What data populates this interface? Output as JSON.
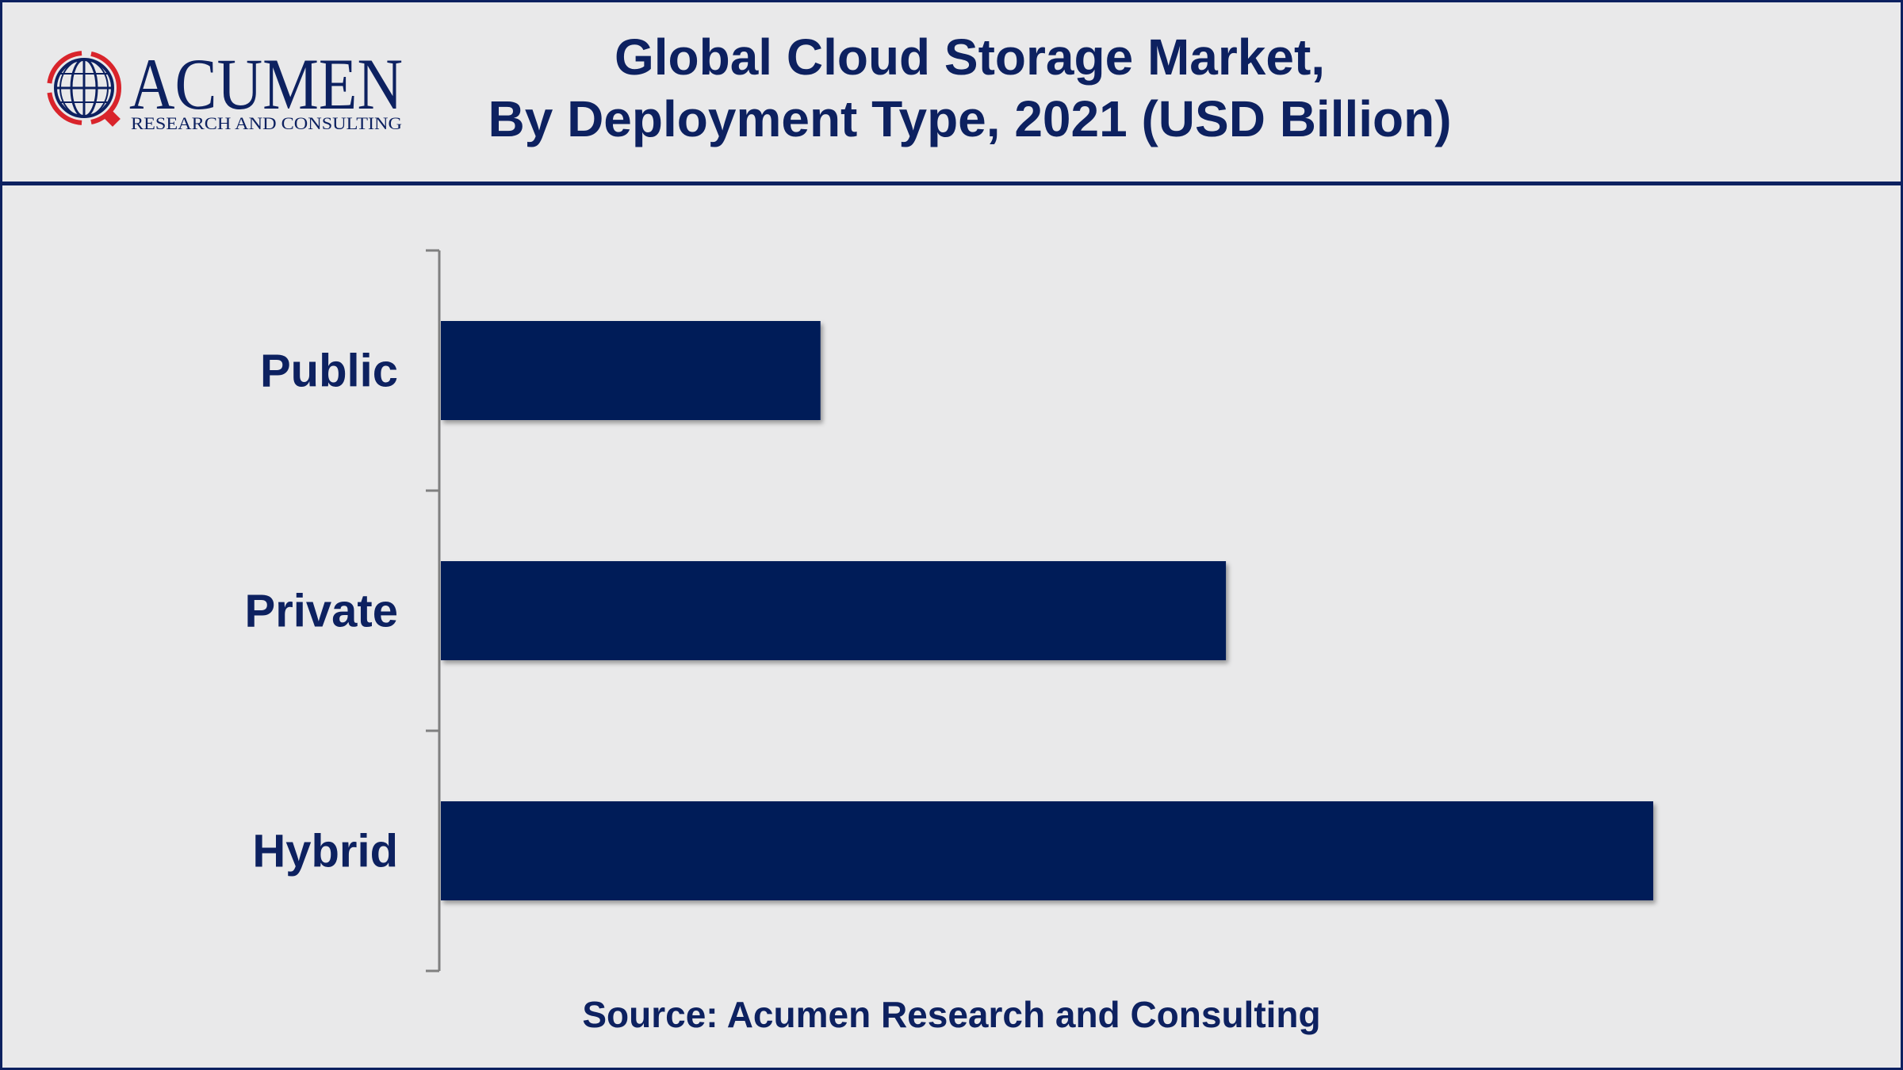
{
  "header": {
    "title_line1": "Global Cloud Storage Market,",
    "title_line2": "By Deployment Type, 2021 (USD Billion)"
  },
  "logo": {
    "name": "ACUMEN",
    "tagline": "RESEARCH AND CONSULTING",
    "icon": "globe-icon"
  },
  "colors": {
    "bar": "#001c58",
    "text": "#0d2160",
    "axis": "#808080",
    "background": "#e9e9ea",
    "accent": "#d9242b"
  },
  "chart_data": {
    "type": "bar",
    "orientation": "horizontal",
    "categories": [
      "Public",
      "Private",
      "Hybrid"
    ],
    "values": [
      31.4,
      64.8,
      100
    ],
    "xlim": [
      0,
      100
    ],
    "title": "Global Cloud Storage Market, By Deployment Type, 2021 (USD Billion)",
    "xlabel": "",
    "ylabel": "",
    "grid": false,
    "legend": "none"
  },
  "footer": {
    "source": "Source: Acumen Research and Consulting"
  }
}
